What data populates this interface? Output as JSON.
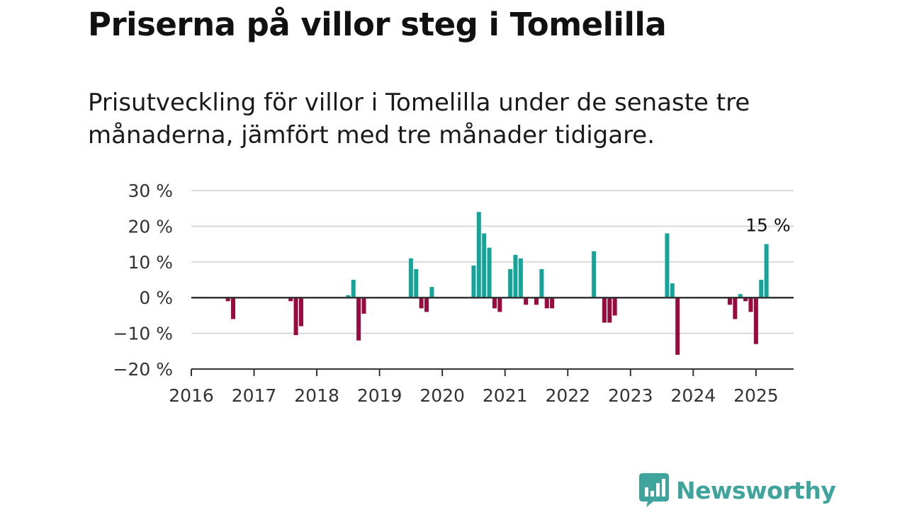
{
  "title": "Priserna på villor steg i Tomelilla",
  "subtitle": "Prisutveckling för villor i Tomelilla under de senaste tre månaderna, jämfört med tre månader tidigare.",
  "brand": {
    "name": "Newsworthy",
    "color": "#3fa59c"
  },
  "colors": {
    "positive": "#14a49a",
    "negative": "#990a3e",
    "grid": "#d9d9d9",
    "axis": "#333333"
  },
  "chart_data": {
    "type": "bar",
    "title": "",
    "xlabel": "",
    "ylabel": "",
    "ylim": [
      -20,
      30
    ],
    "y_ticks": [
      30,
      20,
      10,
      0,
      -10,
      -20
    ],
    "y_tick_labels": [
      "30 %",
      "20 %",
      "10 %",
      "0 %",
      "−10 %",
      "−20 %"
    ],
    "x_ticks": [
      "2016",
      "2017",
      "2018",
      "2019",
      "2020",
      "2021",
      "2022",
      "2023",
      "2024",
      "2025"
    ],
    "grid": true,
    "end_label": "15 %",
    "x": [
      "2016-08",
      "2016-09",
      "2017-08",
      "2017-09",
      "2017-10",
      "2018-07",
      "2018-08",
      "2018-09",
      "2018-10",
      "2019-07",
      "2019-08",
      "2019-09",
      "2019-10",
      "2019-11",
      "2020-07",
      "2020-08",
      "2020-09",
      "2020-10",
      "2020-11",
      "2020-12",
      "2021-02",
      "2021-03",
      "2021-04",
      "2021-05",
      "2021-07",
      "2021-08",
      "2021-09",
      "2021-10",
      "2022-06",
      "2022-08",
      "2022-09",
      "2022-10",
      "2023-08",
      "2023-09",
      "2023-10",
      "2024-08",
      "2024-09",
      "2024-10",
      "2024-11",
      "2024-12",
      "2025-01",
      "2025-02",
      "2025-03"
    ],
    "values": [
      -1,
      -6,
      -1,
      -10.5,
      -8,
      0.7,
      5,
      -12,
      -4.5,
      11,
      8,
      -3,
      -4,
      3,
      9,
      24,
      18,
      14,
      -3,
      -4,
      8,
      12,
      11,
      -2,
      -2,
      8,
      -3,
      -3,
      13,
      -7,
      -7,
      -5,
      18,
      4,
      -16,
      -2,
      -6,
      1,
      -1,
      -4,
      -13,
      5,
      15
    ]
  }
}
